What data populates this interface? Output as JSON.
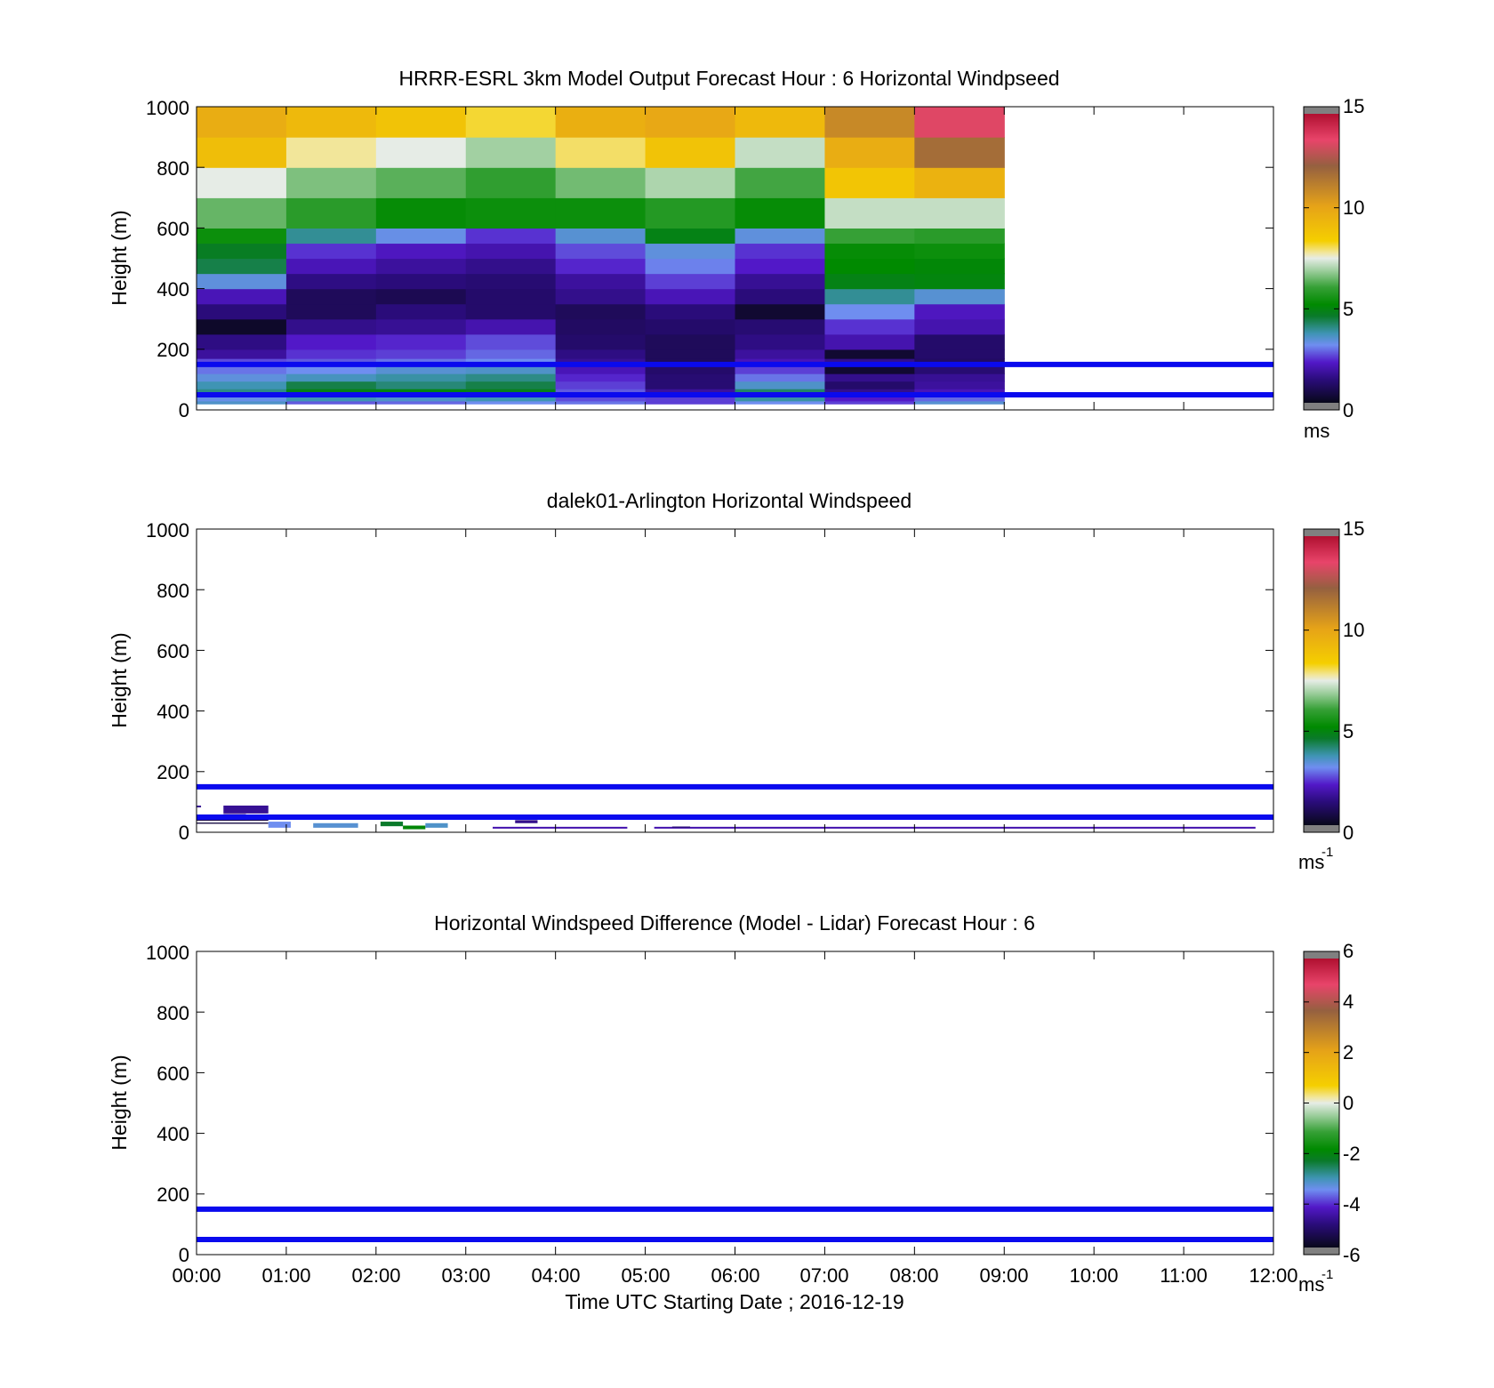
{
  "figure": {
    "xlabel": "Time UTC  Starting Date ; 2016-12-19",
    "x_ticks": [
      "00:00",
      "01:00",
      "02:00",
      "03:00",
      "04:00",
      "05:00",
      "06:00",
      "07:00",
      "08:00",
      "09:00",
      "10:00",
      "11:00",
      "12:00"
    ],
    "y_ticks": [
      "0",
      "200",
      "400",
      "600",
      "800",
      "1000"
    ],
    "line_color": "#0a0aee"
  },
  "chart_data": [
    {
      "type": "heatmap",
      "title": "HRRR-ESRL 3km Model Output   Forecast Hour : 6 Horizontal Windpseed",
      "ylabel": "Height (m)",
      "xlim": [
        0,
        12
      ],
      "ylim": [
        0,
        1000
      ],
      "grid": false,
      "reference_lines_m": [
        50,
        150
      ],
      "colorbar": {
        "ticks": [
          "0",
          "5",
          "10",
          "15"
        ],
        "range": [
          0,
          15
        ],
        "unit": "ms"
      },
      "x_edges": [
        0,
        1,
        2,
        3,
        4,
        5,
        6,
        7,
        8,
        9
      ],
      "y_edges": [
        20,
        30,
        50,
        70,
        95,
        120,
        150,
        170,
        200,
        250,
        300,
        350,
        400,
        450,
        500,
        550,
        600,
        700,
        800,
        900,
        1000
      ],
      "rows": [
        [
          3.4,
          2.6,
          2.7,
          3.0,
          2.8,
          2.4,
          3.0,
          2.4,
          3.3
        ],
        [
          3.1,
          3.6,
          3.4,
          3.6,
          2.5,
          2.4,
          3.7,
          2.1,
          2.7
        ],
        [
          3.9,
          4.8,
          4.9,
          4.7,
          2.6,
          1.6,
          4.1,
          1.4,
          1.9
        ],
        [
          3.6,
          4.3,
          4.0,
          4.3,
          2.4,
          1.1,
          3.4,
          1.0,
          1.6
        ],
        [
          3.2,
          3.5,
          3.7,
          3.9,
          2.2,
          1.1,
          2.8,
          1.4,
          1.5
        ],
        [
          2.8,
          3.0,
          3.3,
          3.4,
          1.9,
          1.0,
          2.4,
          0.3,
          1.1
        ],
        [
          2.5,
          2.6,
          2.8,
          3.0,
          1.5,
          0.8,
          1.9,
          1.4,
          0.9
        ],
        [
          1.6,
          2.3,
          2.4,
          2.7,
          1.3,
          0.8,
          1.6,
          0.3,
          1.0
        ],
        [
          1.3,
          2.1,
          2.2,
          2.5,
          1.0,
          0.8,
          1.3,
          1.8,
          1.0
        ],
        [
          0.2,
          1.4,
          1.5,
          1.8,
          0.9,
          1.0,
          1.1,
          2.3,
          1.8
        ],
        [
          1.2,
          0.8,
          1.2,
          1.0,
          0.8,
          1.2,
          0.3,
          3.0,
          2.0
        ],
        [
          1.9,
          0.8,
          0.7,
          1.0,
          1.4,
          1.9,
          1.2,
          3.8,
          3.3
        ],
        [
          3.2,
          1.3,
          1.2,
          1.1,
          1.6,
          2.4,
          1.5,
          4.8,
          4.9
        ],
        [
          4.3,
          1.9,
          1.6,
          1.4,
          2.2,
          2.9,
          2.1,
          5.1,
          5.0
        ],
        [
          4.6,
          2.3,
          2.0,
          1.8,
          2.5,
          3.2,
          2.3,
          5.2,
          5.3
        ],
        [
          5.3,
          3.8,
          3.1,
          2.3,
          3.3,
          4.8,
          3.2,
          6.0,
          5.8
        ],
        [
          6.4,
          5.8,
          5.2,
          5.3,
          5.3,
          5.7,
          5.2,
          7.2,
          7.2
        ],
        [
          7.5,
          6.6,
          6.3,
          5.9,
          6.5,
          7.0,
          6.1,
          8.8,
          9.6
        ],
        [
          9.1,
          7.8,
          7.5,
          6.9,
          8.0,
          8.9,
          7.2,
          9.8,
          11.9
        ],
        [
          9.8,
          9.3,
          8.9,
          8.2,
          9.7,
          10.0,
          9.3,
          11.0,
          13.5
        ]
      ]
    },
    {
      "type": "heatmap",
      "title": "dalek01-Arlington  Horizontal Windspeed",
      "ylabel": "Height (m)",
      "xlim": [
        0,
        12
      ],
      "ylim": [
        0,
        1000
      ],
      "grid": false,
      "reference_lines_m": [
        50,
        150
      ],
      "colorbar": {
        "ticks": [
          "0",
          "5",
          "10",
          "15"
        ],
        "range": [
          0,
          15
        ],
        "unit": "ms",
        "unit_sup": "-1"
      },
      "patches": [
        {
          "x": [
            0.0,
            0.05
          ],
          "y": [
            82,
            88
          ],
          "v": 1.5
        },
        {
          "x": [
            0.3,
            0.8
          ],
          "y": [
            62,
            88
          ],
          "v": 1.5
        },
        {
          "x": [
            0.3,
            0.55
          ],
          "y": [
            38,
            60
          ],
          "v": 1.2
        },
        {
          "x": [
            0.0,
            0.8
          ],
          "y": [
            38,
            42
          ],
          "v": 0.6
        },
        {
          "x": [
            0.0,
            0.8
          ],
          "y": [
            28,
            32
          ],
          "v": 0.5
        },
        {
          "x": [
            0.8,
            1.05
          ],
          "y": [
            15,
            35
          ],
          "v": 3.0
        },
        {
          "x": [
            1.3,
            1.8
          ],
          "y": [
            15,
            30
          ],
          "v": 3.3
        },
        {
          "x": [
            2.05,
            2.3
          ],
          "y": [
            20,
            35
          ],
          "v": 4.5
        },
        {
          "x": [
            2.3,
            2.55
          ],
          "y": [
            10,
            22
          ],
          "v": 5.0
        },
        {
          "x": [
            2.55,
            2.8
          ],
          "y": [
            15,
            30
          ],
          "v": 3.4
        },
        {
          "x": [
            3.55,
            3.8
          ],
          "y": [
            30,
            40
          ],
          "v": 1.4
        },
        {
          "x": [
            3.3,
            4.8
          ],
          "y": [
            12,
            18
          ],
          "v": 1.8
        },
        {
          "x": [
            5.1,
            11.8
          ],
          "y": [
            12,
            18
          ],
          "v": 1.8
        },
        {
          "x": [
            5.3,
            5.5
          ],
          "y": [
            15,
            19
          ],
          "v": 1.2
        }
      ]
    },
    {
      "type": "heatmap",
      "title": "Horizontal Windspeed Difference (Model - Lidar) Forecast Hour : 6",
      "ylabel": "Height (m)",
      "xlim": [
        0,
        12
      ],
      "ylim": [
        0,
        1000
      ],
      "grid": false,
      "reference_lines_m": [
        50,
        150
      ],
      "colorbar": {
        "ticks": [
          "-6",
          "-4",
          "-2",
          "0",
          "2",
          "4",
          "6"
        ],
        "range": [
          -6,
          6
        ],
        "unit": "ms",
        "unit_sup": "-1"
      }
    }
  ]
}
